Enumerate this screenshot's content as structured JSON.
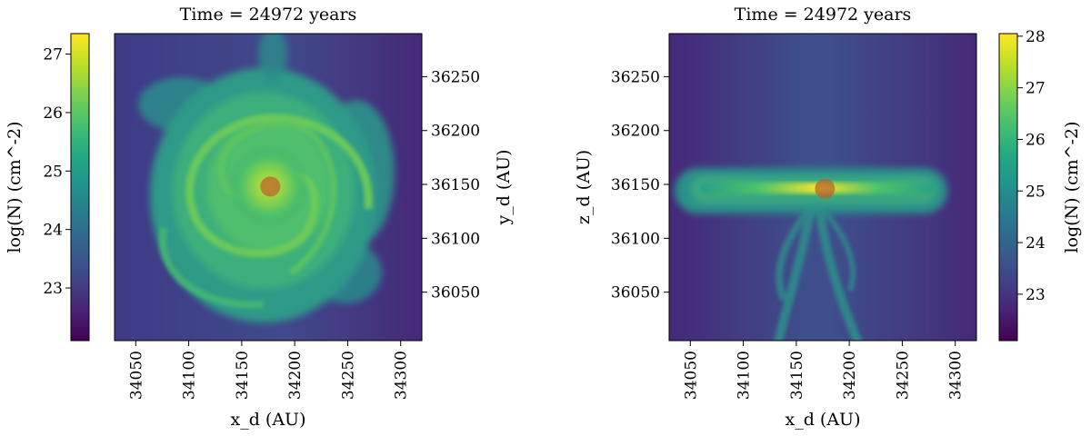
{
  "chart_data": [
    {
      "type": "heatmap",
      "view": "face-on",
      "title": "Time = 24972 years",
      "xlabel": "x_d (AU)",
      "ylabel": "y_d (AU)",
      "xlim": [
        34030,
        34320
      ],
      "ylim": [
        36005,
        36290
      ],
      "xticks": [
        34050,
        34100,
        34150,
        34200,
        34250,
        34300
      ],
      "yticks": [
        36050,
        36100,
        36150,
        36200,
        36250
      ],
      "colorbar": {
        "label": "log(N)  (cm^-2)",
        "position": "left",
        "range": [
          22.1,
          27.35
        ],
        "ticks": [
          23,
          24,
          25,
          26,
          27
        ]
      },
      "sink": {
        "x": 34177,
        "y": 36148
      }
    },
    {
      "type": "heatmap",
      "view": "edge-on",
      "title": "Time = 24972 years",
      "xlabel": "x_d (AU)",
      "ylabel": "z_d (AU)",
      "xlim": [
        34030,
        34320
      ],
      "ylim": [
        36005,
        36290
      ],
      "xticks": [
        34050,
        34100,
        34150,
        34200,
        34250,
        34300
      ],
      "yticks": [
        36050,
        36100,
        36150,
        36200,
        36250
      ],
      "colorbar": {
        "label": "log(N)  (cm^-2)",
        "position": "right",
        "range": [
          22.1,
          28.05
        ],
        "ticks": [
          23,
          24,
          25,
          26,
          27,
          28
        ]
      },
      "sink": {
        "x": 34177,
        "y": 36146
      }
    }
  ]
}
